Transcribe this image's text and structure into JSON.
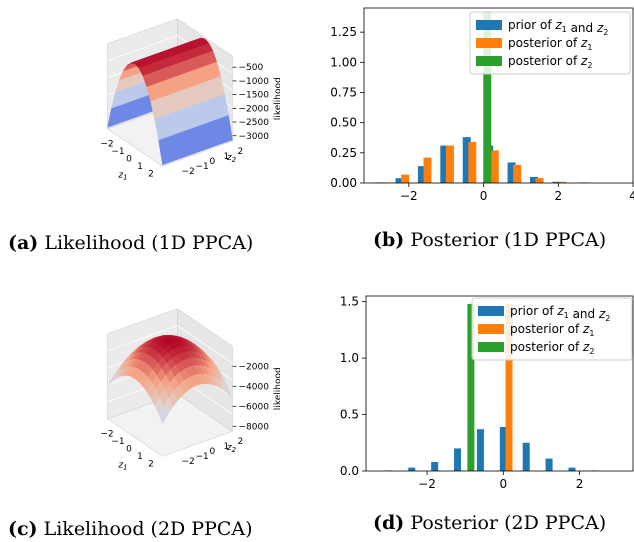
{
  "captions": {
    "a": {
      "tag": "(a)",
      "text": "Likelihood (1D PPCA)"
    },
    "b": {
      "tag": "(b)",
      "text": "Posterior (1D PPCA)"
    },
    "c": {
      "tag": "(c)",
      "text": "Likelihood (2D PPCA)"
    },
    "d": {
      "tag": "(d)",
      "text": "Posterior (2D PPCA)"
    }
  },
  "colors": {
    "blue": "#1f77b4",
    "orange": "#ff7f0e",
    "green": "#2ca02c"
  },
  "chart_data": [
    {
      "id": "a",
      "type": "surface",
      "title": "",
      "xlabel": "z1",
      "ylabel": "z2",
      "zlabel": "likelihood",
      "xticks": [
        "−2",
        "−1",
        "0",
        "1",
        "2"
      ],
      "yticks": [
        "−2",
        "−1",
        "0",
        "1",
        "2"
      ],
      "zticks": [
        "−500",
        "−1000",
        "−1500",
        "−2000",
        "−2500",
        "−3000"
      ],
      "zlim": [
        -3200,
        -100
      ],
      "description_of_shape": "ridge along z2"
    },
    {
      "id": "b",
      "type": "bar",
      "xticks": [
        "−2",
        "0",
        "2",
        "4"
      ],
      "yticks": [
        "0.00",
        "0.25",
        "0.50",
        "0.75",
        "1.00",
        "1.25"
      ],
      "xlim": [
        -3.2,
        4.0
      ],
      "ylim": [
        0,
        1.45
      ],
      "legend_position": "top-right",
      "series": [
        {
          "name": "prior of z1 and z2",
          "x": [
            -2.8,
            -2.25,
            -1.65,
            -1.05,
            -0.45,
            0.15,
            0.75,
            1.35,
            1.95,
            2.55,
            3.15
          ],
          "values": [
            0.005,
            0.04,
            0.14,
            0.31,
            0.38,
            0.31,
            0.17,
            0.05,
            0.01,
            0.002,
            0.0
          ]
        },
        {
          "name": "posterior of z1",
          "x": [
            -2.65,
            -2.1,
            -1.5,
            -0.9,
            -0.3,
            0.3,
            0.9,
            1.5,
            2.1,
            2.7,
            3.3
          ],
          "values": [
            0.005,
            0.07,
            0.21,
            0.31,
            0.34,
            0.27,
            0.15,
            0.04,
            0.01,
            0.005,
            0.0
          ]
        },
        {
          "name": "posterior of z2",
          "x": [
            0.1
          ],
          "values": [
            1.42
          ]
        }
      ]
    },
    {
      "id": "c",
      "type": "surface",
      "title": "",
      "xlabel": "z1",
      "ylabel": "z2",
      "zlabel": "likelihood",
      "xticks": [
        "−2",
        "−1",
        "0",
        "1",
        "2"
      ],
      "yticks": [
        "−2",
        "−1",
        "0",
        "1",
        "2"
      ],
      "zticks": [
        "−2000",
        "−4000",
        "−6000",
        "−8000"
      ],
      "zlim": [
        -8500,
        0
      ],
      "description_of_shape": "dome"
    },
    {
      "id": "d",
      "type": "bar",
      "xticks": [
        "−2",
        "0",
        "2"
      ],
      "yticks": [
        "0.0",
        "0.5",
        "1.0",
        "1.5"
      ],
      "xlim": [
        -3.6,
        3.4
      ],
      "ylim": [
        0,
        1.55
      ],
      "legend_position": "top-right",
      "series": [
        {
          "name": "prior of z1 and z2",
          "x": [
            -3.0,
            -2.4,
            -1.8,
            -1.2,
            -0.6,
            0.0,
            0.6,
            1.2,
            1.8,
            2.4
          ],
          "values": [
            0.005,
            0.03,
            0.08,
            0.2,
            0.37,
            0.39,
            0.25,
            0.11,
            0.03,
            0.005
          ]
        },
        {
          "name": "posterior of z1",
          "x": [
            0.15
          ],
          "values": [
            1.48
          ]
        },
        {
          "name": "posterior of z2",
          "x": [
            -0.85
          ],
          "values": [
            1.48
          ]
        }
      ]
    }
  ]
}
